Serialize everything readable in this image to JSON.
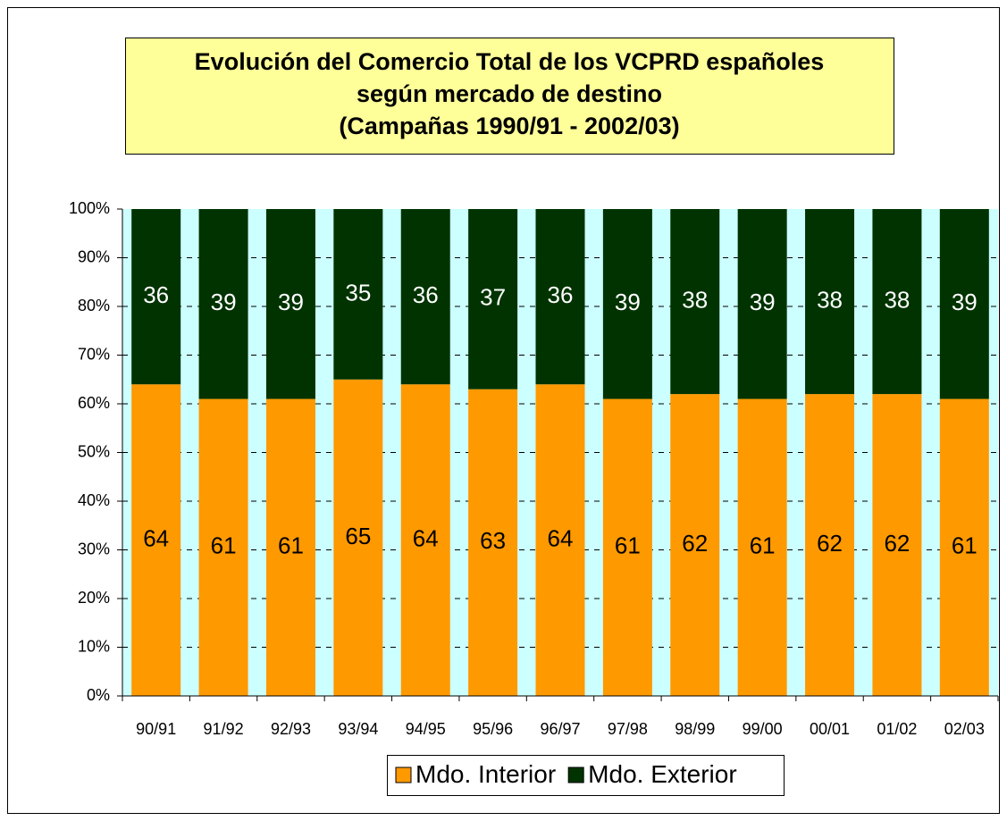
{
  "chart_data": {
    "type": "stacked_bar",
    "title": [
      "Evolución del Comercio Total de los VCPRD españoles",
      "según mercado de destino",
      "(Campañas 1990/91 - 2002/03)"
    ],
    "categories": [
      "90/91",
      "91/92",
      "92/93",
      "93/94",
      "94/95",
      "95/96",
      "96/97",
      "97/98",
      "98/99",
      "99/00",
      "00/01",
      "01/02",
      "02/03"
    ],
    "series": [
      {
        "name": "Mdo. Interior",
        "color": "#ff9900",
        "values": [
          64,
          61,
          61,
          65,
          64,
          63,
          64,
          61,
          62,
          61,
          62,
          62,
          61
        ]
      },
      {
        "name": "Mdo. Exterior",
        "color": "#003300",
        "values": [
          36,
          39,
          39,
          35,
          36,
          37,
          36,
          39,
          38,
          39,
          38,
          38,
          39
        ]
      }
    ],
    "ylim": [
      0,
      100
    ],
    "yticks": [
      {
        "value": 0,
        "label": "0%"
      },
      {
        "value": 10,
        "label": "10%"
      },
      {
        "value": 20,
        "label": "20%"
      },
      {
        "value": 30,
        "label": "30%"
      },
      {
        "value": 40,
        "label": "40%"
      },
      {
        "value": 50,
        "label": "50%"
      },
      {
        "value": 60,
        "label": "60%"
      },
      {
        "value": 70,
        "label": "70%"
      },
      {
        "value": 80,
        "label": "80%"
      },
      {
        "value": 90,
        "label": "90%"
      },
      {
        "value": 100,
        "label": "100%"
      }
    ],
    "grid": true,
    "legend": "bottom"
  }
}
